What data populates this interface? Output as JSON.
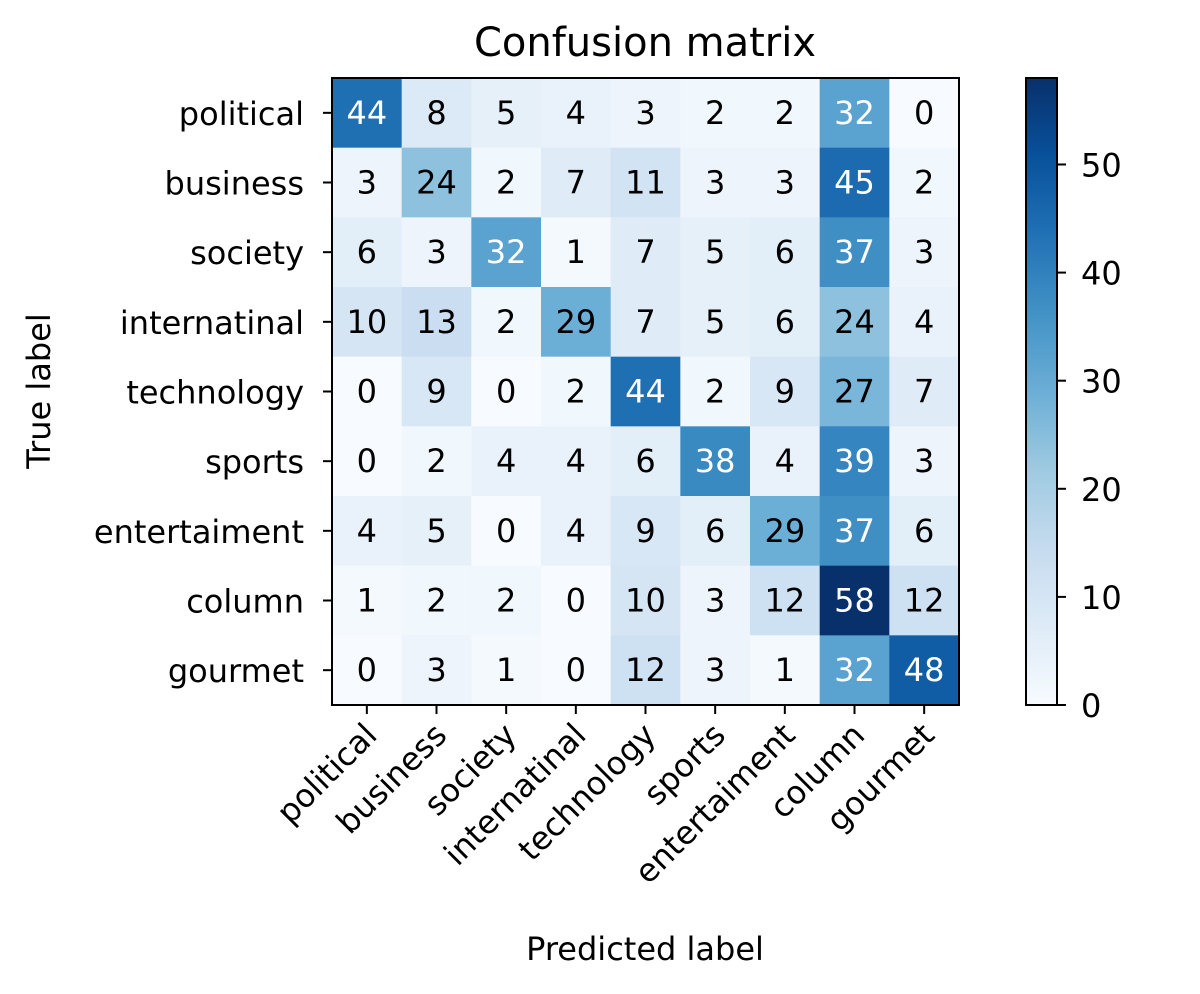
{
  "chart_data": {
    "type": "heatmap",
    "title": "Confusion matrix",
    "xlabel": "Predicted label",
    "ylabel": "True label",
    "x_categories": [
      "political",
      "business",
      "society",
      "internatinal",
      "technology",
      "sports",
      "entertaiment",
      "column",
      "gourmet"
    ],
    "y_categories": [
      "political",
      "business",
      "society",
      "internatinal",
      "technology",
      "sports",
      "entertaiment",
      "column",
      "gourmet"
    ],
    "values": [
      [
        44,
        8,
        5,
        4,
        3,
        2,
        2,
        32,
        0
      ],
      [
        3,
        24,
        2,
        7,
        11,
        3,
        3,
        45,
        2
      ],
      [
        6,
        3,
        32,
        1,
        7,
        5,
        6,
        37,
        3
      ],
      [
        10,
        13,
        2,
        29,
        7,
        5,
        6,
        24,
        4
      ],
      [
        0,
        9,
        0,
        2,
        44,
        2,
        9,
        27,
        7
      ],
      [
        0,
        2,
        4,
        4,
        6,
        38,
        4,
        39,
        3
      ],
      [
        4,
        5,
        0,
        4,
        9,
        6,
        29,
        37,
        6
      ],
      [
        1,
        2,
        2,
        0,
        10,
        3,
        12,
        58,
        12
      ],
      [
        0,
        3,
        1,
        0,
        12,
        3,
        1,
        32,
        48
      ]
    ],
    "colorbar": {
      "range": [
        0,
        58
      ],
      "ticks": [
        0,
        10,
        20,
        30,
        40,
        50
      ],
      "colormap": "Blues",
      "color_low": "#f7fbff",
      "color_high": "#08306b"
    },
    "text_color_dark": "#000000",
    "text_color_light": "#ffffff"
  }
}
